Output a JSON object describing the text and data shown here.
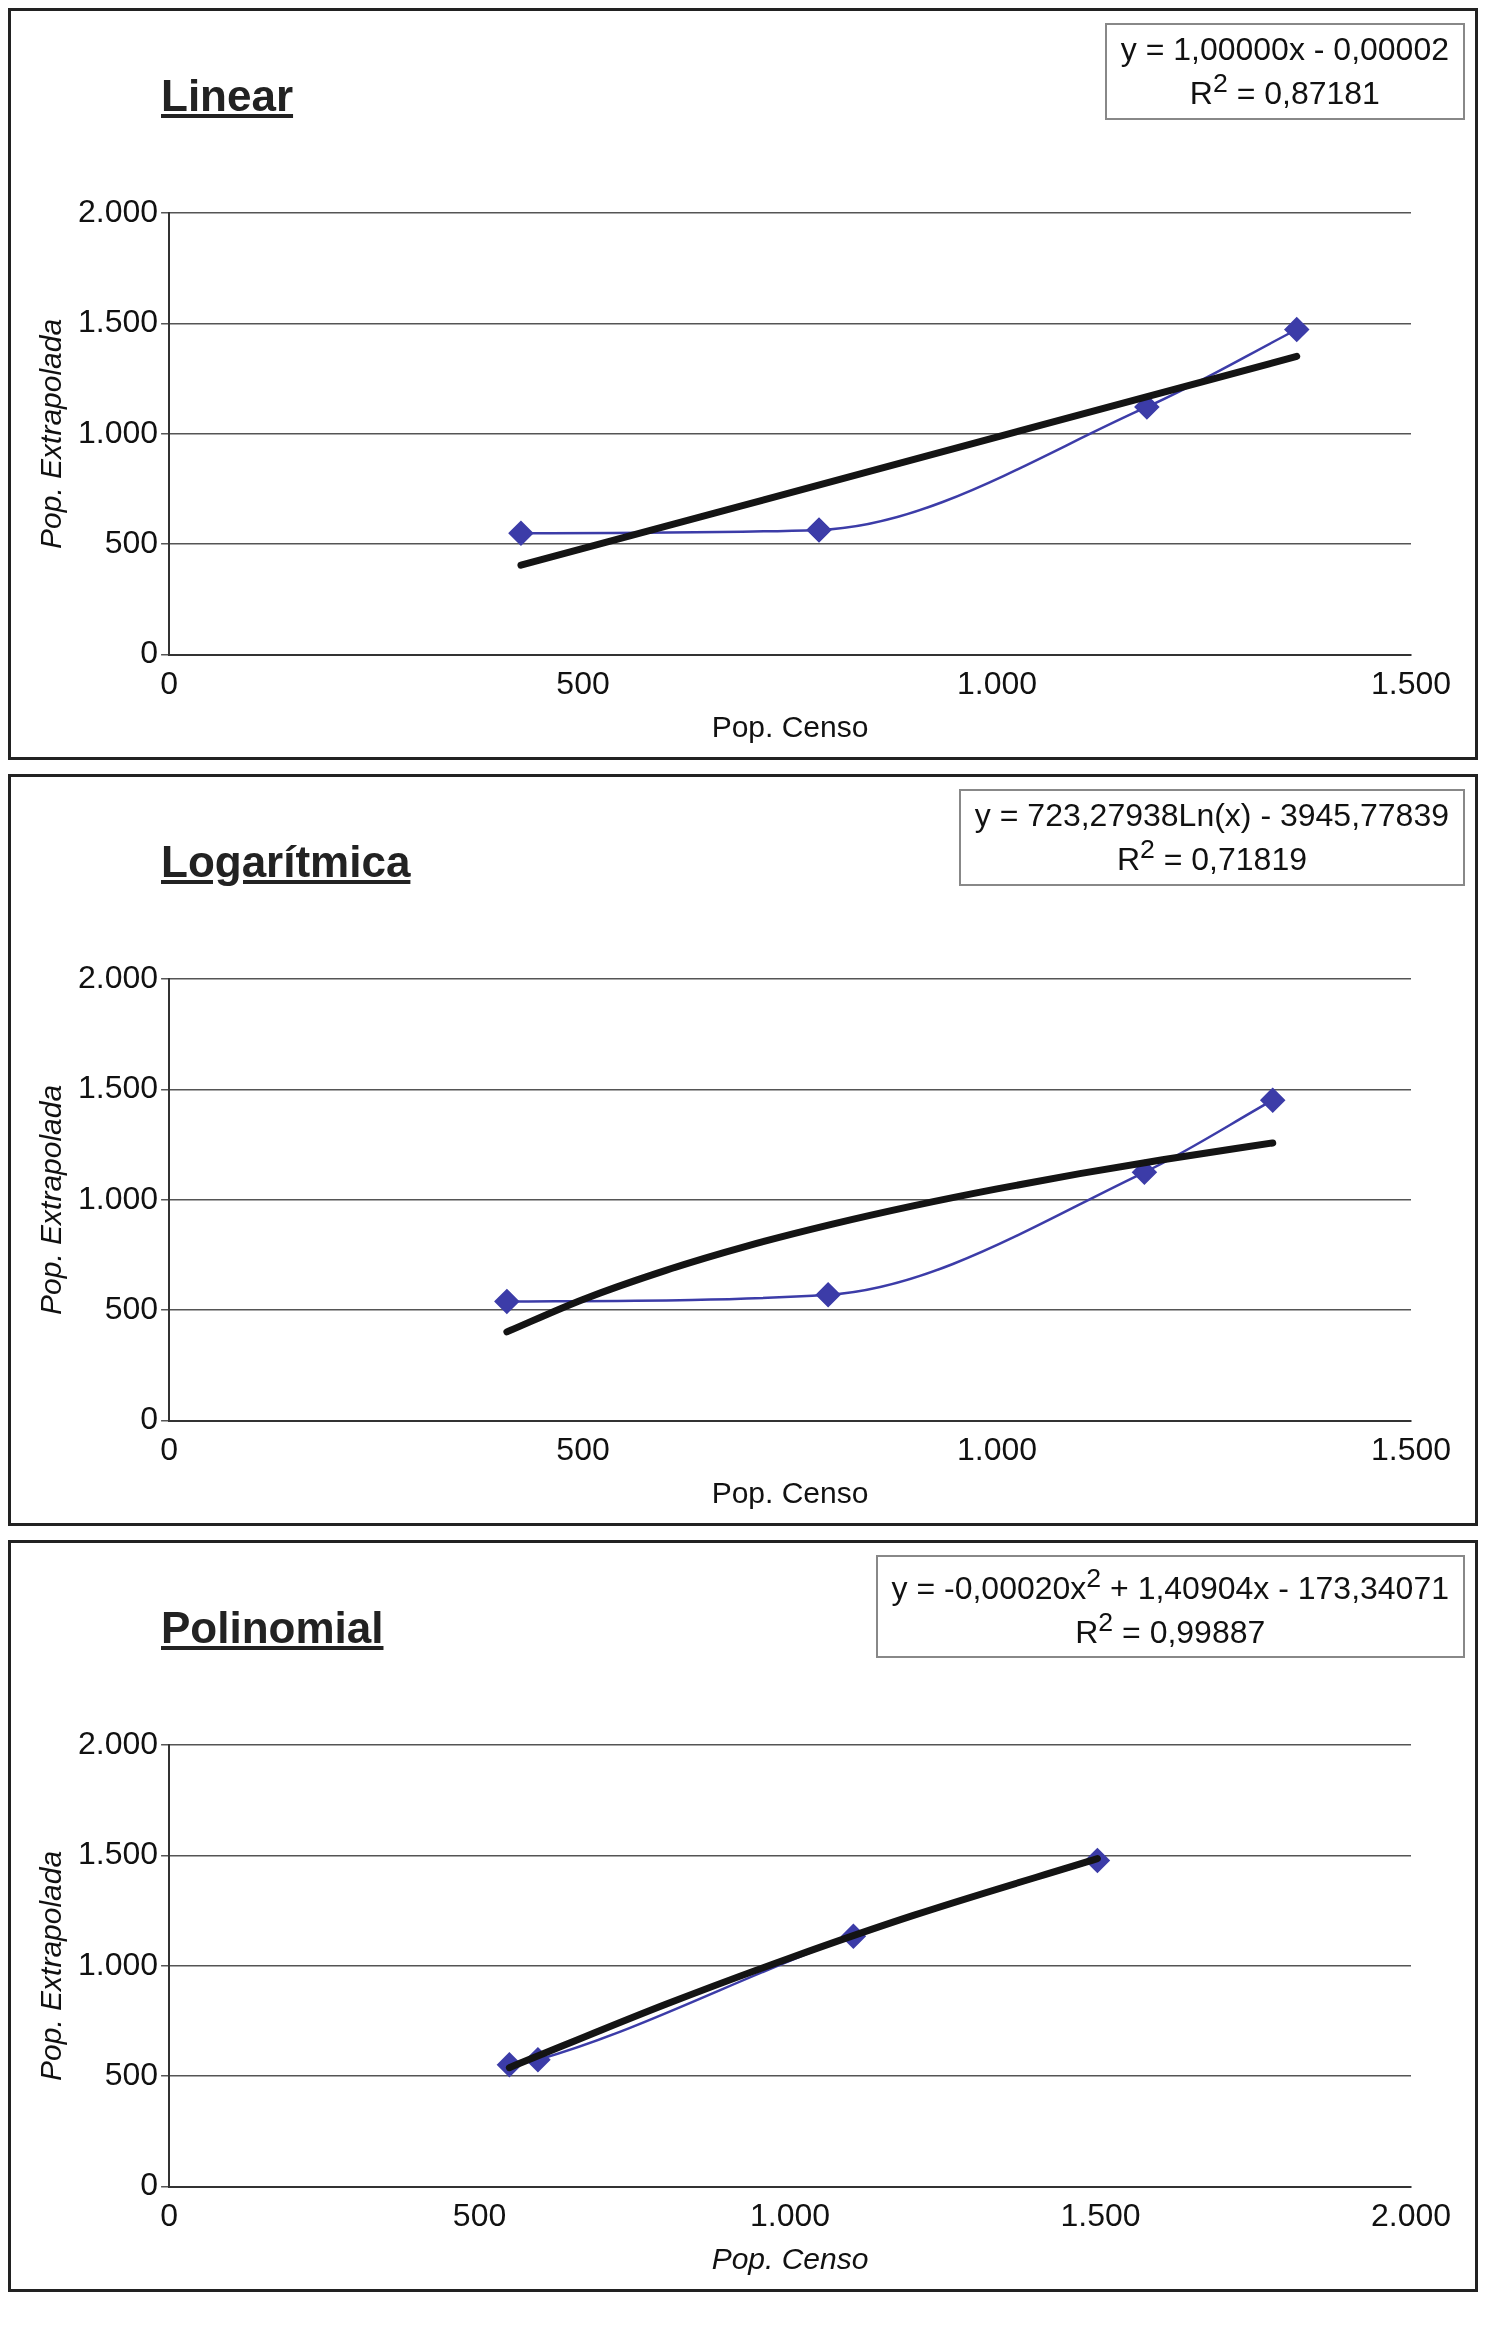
{
  "chart_data": [
    {
      "type": "line",
      "title": "Linear",
      "xlabel": "Pop. Censo",
      "ylabel": "Pop. Extrapolada",
      "annotations": [
        "y = 1,00000x - 0,00002",
        "R$^{2}$ = 0,87181"
      ],
      "xlim": [
        0,
        1500
      ],
      "xticks": [
        {
          "value": 0,
          "label": "0"
        },
        {
          "value": 500,
          "label": "500"
        },
        {
          "value": 1000,
          "label": "1.000"
        },
        {
          "value": 1500,
          "label": "1.500"
        }
      ],
      "ylim": [
        0,
        2000
      ],
      "yticks": [
        {
          "value": 0,
          "label": "0"
        },
        {
          "value": 500,
          "label": "500"
        },
        {
          "value": 1000,
          "label": "1.000"
        },
        {
          "value": 1500,
          "label": "1.500"
        },
        {
          "value": 2000,
          "label": "2.000"
        }
      ],
      "grid": "y",
      "legend": false,
      "series": [
        {
          "color": "#3c3ca8",
          "marker": "diamond",
          "x": [
            425,
            785,
            1181,
            1362
          ],
          "values": [
            550,
            565,
            1122,
            1473
          ]
        },
        {
          "color": "#141414",
          "marker": "none",
          "x": [
            425,
            1362
          ],
          "values": [
            405,
            1351
          ]
        }
      ]
    },
    {
      "type": "line",
      "title": "Logarítmica",
      "xlabel": "Pop. Censo",
      "ylabel": "Pop. Extrapolada",
      "annotations": [
        "y = 723,27938Ln(x) - 3945,77839",
        "R$^{2}$ = 0,71819"
      ],
      "xlim": [
        0,
        1500
      ],
      "xticks": [
        {
          "value": 0,
          "label": "0"
        },
        {
          "value": 500,
          "label": "500"
        },
        {
          "value": 1000,
          "label": "1.000"
        },
        {
          "value": 1500,
          "label": "1.500"
        }
      ],
      "ylim": [
        0,
        2000
      ],
      "yticks": [
        {
          "value": 0,
          "label": "0"
        },
        {
          "value": 500,
          "label": "500"
        },
        {
          "value": 1000,
          "label": "1.000"
        },
        {
          "value": 1500,
          "label": "1.500"
        },
        {
          "value": 2000,
          "label": "2.000"
        }
      ],
      "grid": "y",
      "legend": false,
      "series": [
        {
          "color": "#3c3ca8",
          "marker": "diamond",
          "x": [
            408,
            796,
            1178,
            1333
          ],
          "values": [
            540,
            570,
            1125,
            1452
          ]
        },
        {
          "color": "#141414",
          "marker": "none",
          "x": [
            408,
            500,
            600,
            700,
            800,
            900,
            1000,
            1100,
            1200,
            1333
          ],
          "values": [
            402,
            549,
            681,
            793,
            889,
            974,
            1050,
            1119,
            1182,
            1258
          ]
        }
      ]
    },
    {
      "type": "line",
      "title": "Polinomial",
      "xlabel": "Pop. Censo",
      "ylabel": "Pop. Extrapolada",
      "annotations": [
        "y = -0,00020x$^{2}$ + 1,40904x - 173,34071",
        "R$^{2}$ = 0,99887"
      ],
      "xlim": [
        0,
        2000
      ],
      "xticks": [
        {
          "value": 0,
          "label": "0"
        },
        {
          "value": 500,
          "label": "500"
        },
        {
          "value": 1000,
          "label": "1.000"
        },
        {
          "value": 1500,
          "label": "1.500"
        },
        {
          "value": 2000,
          "label": "2.000"
        }
      ],
      "ylim": [
        0,
        2000
      ],
      "yticks": [
        {
          "value": 0,
          "label": "0"
        },
        {
          "value": 500,
          "label": "500"
        },
        {
          "value": 1000,
          "label": "1.000"
        },
        {
          "value": 1500,
          "label": "1.500"
        },
        {
          "value": 2000,
          "label": "2.000"
        }
      ],
      "grid": "y",
      "legend": false,
      "series": [
        {
          "color": "#3c3ca8",
          "marker": "diamond",
          "x": [
            548,
            594,
            1102,
            1495
          ],
          "values": [
            552,
            575,
            1134,
            1478
          ]
        },
        {
          "color": "#141414",
          "marker": "none",
          "x": [
            548,
            800,
            1000,
            1200,
            1495
          ],
          "values": [
            539,
            826,
            1036,
            1230,
            1486
          ]
        }
      ]
    }
  ]
}
